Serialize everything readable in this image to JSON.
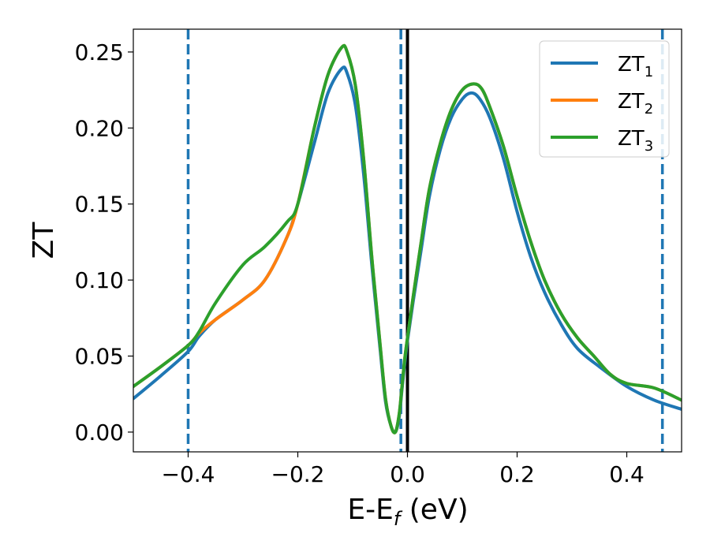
{
  "chart_data": {
    "type": "line",
    "title": "",
    "xlabel": {
      "main": "E-E",
      "sub": "f",
      "tail": " (eV)"
    },
    "ylabel": "ZT",
    "xlim": [
      -0.5,
      0.5
    ],
    "ylim": [
      -0.013,
      0.265
    ],
    "xticks": [
      {
        "value": -0.4,
        "label": "−0.4"
      },
      {
        "value": -0.2,
        "label": "−0.2"
      },
      {
        "value": 0.0,
        "label": "0.0"
      },
      {
        "value": 0.2,
        "label": "0.2"
      },
      {
        "value": 0.4,
        "label": "0.4"
      }
    ],
    "yticks": [
      {
        "value": 0.0,
        "label": "0.00"
      },
      {
        "value": 0.05,
        "label": "0.05"
      },
      {
        "value": 0.1,
        "label": "0.10"
      },
      {
        "value": 0.15,
        "label": "0.15"
      },
      {
        "value": 0.2,
        "label": "0.20"
      },
      {
        "value": 0.25,
        "label": "0.25"
      }
    ],
    "legend_position": "top-right",
    "vertical_lines": [
      {
        "x": -0.4,
        "style": "dashed",
        "color": "#1f77b4"
      },
      {
        "x": -0.012,
        "style": "dashed",
        "color": "#1f77b4"
      },
      {
        "x": 0.0,
        "style": "solid",
        "color": "#000000"
      },
      {
        "x": 0.465,
        "style": "dashed",
        "color": "#1f77b4"
      }
    ],
    "series": [
      {
        "name": "ZT",
        "sub": "1",
        "color": "#1f77b4",
        "points": [
          [
            -0.5,
            0.022
          ],
          [
            -0.45,
            0.037
          ],
          [
            -0.4,
            0.053
          ],
          [
            -0.38,
            0.063
          ],
          [
            -0.35,
            0.074
          ],
          [
            -0.3,
            0.087
          ],
          [
            -0.26,
            0.1
          ],
          [
            -0.22,
            0.128
          ],
          [
            -0.2,
            0.15
          ],
          [
            -0.17,
            0.19
          ],
          [
            -0.145,
            0.223
          ],
          [
            -0.12,
            0.239
          ],
          [
            -0.11,
            0.236
          ],
          [
            -0.095,
            0.215
          ],
          [
            -0.08,
            0.17
          ],
          [
            -0.065,
            0.11
          ],
          [
            -0.05,
            0.055
          ],
          [
            -0.04,
            0.02
          ],
          [
            -0.03,
            0.004
          ],
          [
            -0.022,
            0.0
          ],
          [
            -0.015,
            0.01
          ],
          [
            -0.01,
            0.028
          ],
          [
            -0.005,
            0.045
          ],
          [
            0.0,
            0.06
          ],
          [
            0.01,
            0.085
          ],
          [
            0.025,
            0.12
          ],
          [
            0.04,
            0.155
          ],
          [
            0.06,
            0.186
          ],
          [
            0.08,
            0.207
          ],
          [
            0.1,
            0.219
          ],
          [
            0.115,
            0.223
          ],
          [
            0.13,
            0.22
          ],
          [
            0.15,
            0.207
          ],
          [
            0.175,
            0.18
          ],
          [
            0.2,
            0.145
          ],
          [
            0.225,
            0.115
          ],
          [
            0.25,
            0.092
          ],
          [
            0.28,
            0.071
          ],
          [
            0.31,
            0.055
          ],
          [
            0.35,
            0.043
          ],
          [
            0.4,
            0.03
          ],
          [
            0.45,
            0.021
          ],
          [
            0.5,
            0.015
          ]
        ]
      },
      {
        "name": "ZT",
        "sub": "2",
        "color": "#ff7f0e",
        "points": [
          [
            -0.5,
            0.03
          ],
          [
            -0.45,
            0.043
          ],
          [
            -0.4,
            0.057
          ],
          [
            -0.38,
            0.065
          ],
          [
            -0.35,
            0.074
          ],
          [
            -0.3,
            0.087
          ],
          [
            -0.26,
            0.1
          ],
          [
            -0.22,
            0.128
          ],
          [
            -0.2,
            0.15
          ],
          [
            -0.17,
            0.2
          ],
          [
            -0.145,
            0.235
          ],
          [
            -0.12,
            0.253
          ],
          [
            -0.11,
            0.25
          ],
          [
            -0.095,
            0.228
          ],
          [
            -0.08,
            0.18
          ],
          [
            -0.065,
            0.115
          ],
          [
            -0.05,
            0.058
          ],
          [
            -0.04,
            0.022
          ],
          [
            -0.03,
            0.004
          ],
          [
            -0.022,
            0.0
          ],
          [
            -0.015,
            0.012
          ],
          [
            -0.01,
            0.03
          ],
          [
            -0.005,
            0.048
          ],
          [
            0.0,
            0.062
          ],
          [
            0.01,
            0.088
          ],
          [
            0.025,
            0.125
          ],
          [
            0.04,
            0.16
          ],
          [
            0.06,
            0.19
          ],
          [
            0.08,
            0.212
          ],
          [
            0.1,
            0.225
          ],
          [
            0.12,
            0.229
          ],
          [
            0.135,
            0.226
          ],
          [
            0.15,
            0.214
          ],
          [
            0.175,
            0.188
          ],
          [
            0.2,
            0.155
          ],
          [
            0.225,
            0.125
          ],
          [
            0.25,
            0.1
          ],
          [
            0.28,
            0.078
          ],
          [
            0.31,
            0.062
          ],
          [
            0.34,
            0.05
          ],
          [
            0.37,
            0.038
          ],
          [
            0.4,
            0.032
          ],
          [
            0.45,
            0.029
          ],
          [
            0.5,
            0.021
          ]
        ]
      },
      {
        "name": "ZT",
        "sub": "3",
        "color": "#2ca02c",
        "points": [
          [
            -0.5,
            0.03
          ],
          [
            -0.45,
            0.043
          ],
          [
            -0.4,
            0.057
          ],
          [
            -0.38,
            0.066
          ],
          [
            -0.35,
            0.085
          ],
          [
            -0.3,
            0.11
          ],
          [
            -0.26,
            0.122
          ],
          [
            -0.22,
            0.138
          ],
          [
            -0.2,
            0.15
          ],
          [
            -0.17,
            0.2
          ],
          [
            -0.145,
            0.235
          ],
          [
            -0.12,
            0.253
          ],
          [
            -0.11,
            0.25
          ],
          [
            -0.095,
            0.228
          ],
          [
            -0.08,
            0.18
          ],
          [
            -0.065,
            0.115
          ],
          [
            -0.05,
            0.058
          ],
          [
            -0.04,
            0.022
          ],
          [
            -0.03,
            0.004
          ],
          [
            -0.022,
            0.0
          ],
          [
            -0.015,
            0.012
          ],
          [
            -0.01,
            0.03
          ],
          [
            -0.005,
            0.048
          ],
          [
            0.0,
            0.062
          ],
          [
            0.01,
            0.088
          ],
          [
            0.025,
            0.125
          ],
          [
            0.04,
            0.16
          ],
          [
            0.06,
            0.19
          ],
          [
            0.08,
            0.212
          ],
          [
            0.1,
            0.225
          ],
          [
            0.12,
            0.229
          ],
          [
            0.135,
            0.226
          ],
          [
            0.15,
            0.214
          ],
          [
            0.175,
            0.188
          ],
          [
            0.2,
            0.155
          ],
          [
            0.225,
            0.125
          ],
          [
            0.25,
            0.1
          ],
          [
            0.28,
            0.078
          ],
          [
            0.31,
            0.062
          ],
          [
            0.34,
            0.05
          ],
          [
            0.37,
            0.038
          ],
          [
            0.4,
            0.032
          ],
          [
            0.45,
            0.029
          ],
          [
            0.5,
            0.021
          ]
        ]
      }
    ]
  }
}
